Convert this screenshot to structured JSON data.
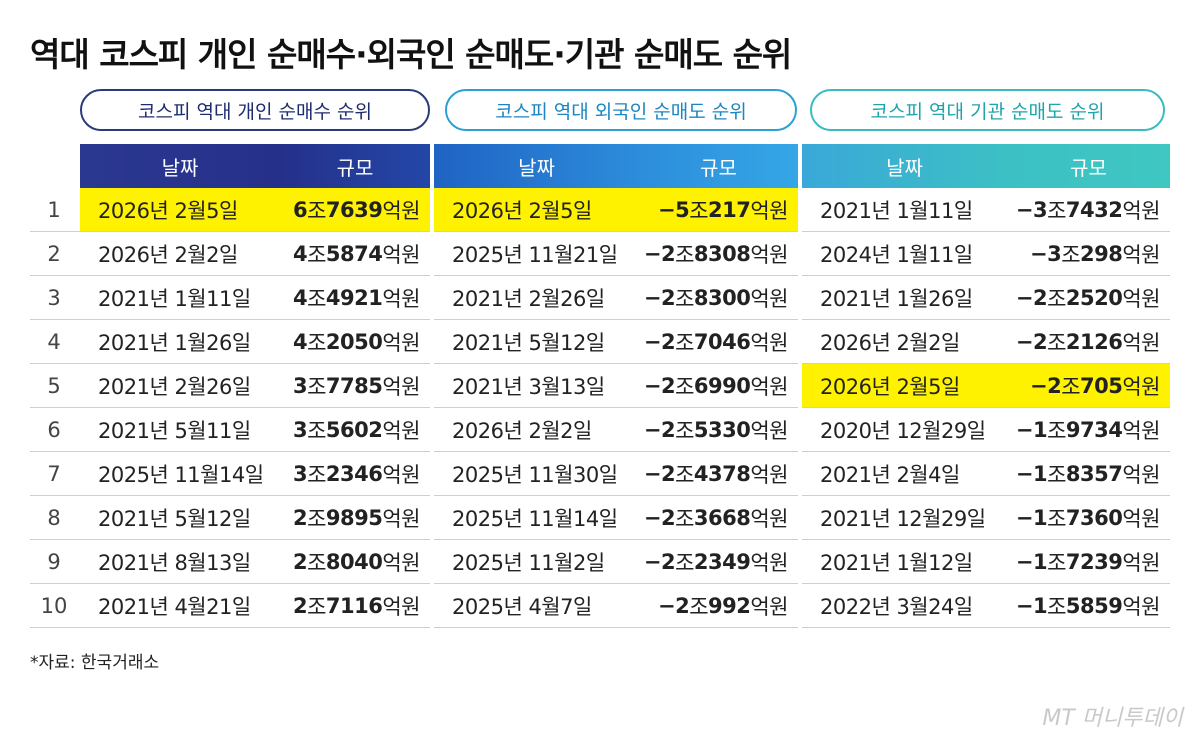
{
  "title": "역대 코스피 개인 순매수·외국인 순매도·기관 순매도 순위",
  "groups": [
    {
      "label": "코스피 역대 개인 순매수 순위",
      "date_header": "날짜",
      "amount_header": "규모"
    },
    {
      "label": "코스피 역대 외국인 순매도 순위",
      "date_header": "날짜",
      "amount_header": "규모"
    },
    {
      "label": "코스피 역대 기관 순매도 순위",
      "date_header": "날짜",
      "amount_header": "규모"
    }
  ],
  "rows": [
    {
      "rank": "1",
      "individual": {
        "date": "2026년 2월5일",
        "sign": "",
        "jo": "6",
        "eok": "7639",
        "highlight": true
      },
      "foreign": {
        "date": "2026년 2월5일",
        "sign": "−",
        "jo": "5",
        "eok": "217",
        "highlight": true
      },
      "institution": {
        "date": "2021년 1월11일",
        "sign": "−",
        "jo": "3",
        "eok": "7432",
        "highlight": false
      }
    },
    {
      "rank": "2",
      "individual": {
        "date": "2026년 2월2일",
        "sign": "",
        "jo": "4",
        "eok": "5874",
        "highlight": false
      },
      "foreign": {
        "date": "2025년 11월21일",
        "sign": "−",
        "jo": "2",
        "eok": "8308",
        "highlight": false
      },
      "institution": {
        "date": "2024년 1월11일",
        "sign": "−",
        "jo": "3",
        "eok": "298",
        "highlight": false
      }
    },
    {
      "rank": "3",
      "individual": {
        "date": "2021년 1월11일",
        "sign": "",
        "jo": "4",
        "eok": "4921",
        "highlight": false
      },
      "foreign": {
        "date": "2021년 2월26일",
        "sign": "−",
        "jo": "2",
        "eok": "8300",
        "highlight": false
      },
      "institution": {
        "date": "2021년 1월26일",
        "sign": "−",
        "jo": "2",
        "eok": "2520",
        "highlight": false
      }
    },
    {
      "rank": "4",
      "individual": {
        "date": "2021년 1월26일",
        "sign": "",
        "jo": "4",
        "eok": "2050",
        "highlight": false
      },
      "foreign": {
        "date": "2021년 5월12일",
        "sign": "−",
        "jo": "2",
        "eok": "7046",
        "highlight": false
      },
      "institution": {
        "date": "2026년 2월2일",
        "sign": "−",
        "jo": "2",
        "eok": "2126",
        "highlight": false
      }
    },
    {
      "rank": "5",
      "individual": {
        "date": "2021년 2월26일",
        "sign": "",
        "jo": "3",
        "eok": "7785",
        "highlight": false
      },
      "foreign": {
        "date": "2021년 3월13일",
        "sign": "−",
        "jo": "2",
        "eok": "6990",
        "highlight": false
      },
      "institution": {
        "date": "2026년 2월5일",
        "sign": "−",
        "jo": "2",
        "eok": "705",
        "highlight": true
      }
    },
    {
      "rank": "6",
      "individual": {
        "date": "2021년 5월11일",
        "sign": "",
        "jo": "3",
        "eok": "5602",
        "highlight": false
      },
      "foreign": {
        "date": "2026년 2월2일",
        "sign": "−",
        "jo": "2",
        "eok": "5330",
        "highlight": false
      },
      "institution": {
        "date": "2020년 12월29일",
        "sign": "−",
        "jo": "1",
        "eok": "9734",
        "highlight": false
      }
    },
    {
      "rank": "7",
      "individual": {
        "date": "2025년 11월14일",
        "sign": "",
        "jo": "3",
        "eok": "2346",
        "highlight": false
      },
      "foreign": {
        "date": "2025년 11월30일",
        "sign": "−",
        "jo": "2",
        "eok": "4378",
        "highlight": false
      },
      "institution": {
        "date": "2021년 2월4일",
        "sign": "−",
        "jo": "1",
        "eok": "8357",
        "highlight": false
      }
    },
    {
      "rank": "8",
      "individual": {
        "date": "2021년 5월12일",
        "sign": "",
        "jo": "2",
        "eok": "9895",
        "highlight": false
      },
      "foreign": {
        "date": "2025년 11월14일",
        "sign": "−",
        "jo": "2",
        "eok": "3668",
        "highlight": false
      },
      "institution": {
        "date": "2021년 12월29일",
        "sign": "−",
        "jo": "1",
        "eok": "7360",
        "highlight": false
      }
    },
    {
      "rank": "9",
      "individual": {
        "date": "2021년 8월13일",
        "sign": "",
        "jo": "2",
        "eok": "8040",
        "highlight": false
      },
      "foreign": {
        "date": "2025년 11월2일",
        "sign": "−",
        "jo": "2",
        "eok": "2349",
        "highlight": false
      },
      "institution": {
        "date": "2021년 1월12일",
        "sign": "−",
        "jo": "1",
        "eok": "7239",
        "highlight": false
      }
    },
    {
      "rank": "10",
      "individual": {
        "date": "2021년 4월21일",
        "sign": "",
        "jo": "2",
        "eok": "7116",
        "highlight": false
      },
      "foreign": {
        "date": "2025년 4월7일",
        "sign": "−",
        "jo": "2",
        "eok": "992",
        "highlight": false
      },
      "institution": {
        "date": "2022년 3월24일",
        "sign": "−",
        "jo": "1",
        "eok": "5859",
        "highlight": false
      }
    }
  ],
  "units": {
    "jo": "조",
    "eok": "억원"
  },
  "source": "*자료: 한국거래소",
  "logo": "MT 머니투데이",
  "colors": {
    "highlight": "#fff200",
    "header_individual": "#27348b",
    "header_foreign": "#2b8fd6",
    "header_institution": "#3cc2c2"
  }
}
